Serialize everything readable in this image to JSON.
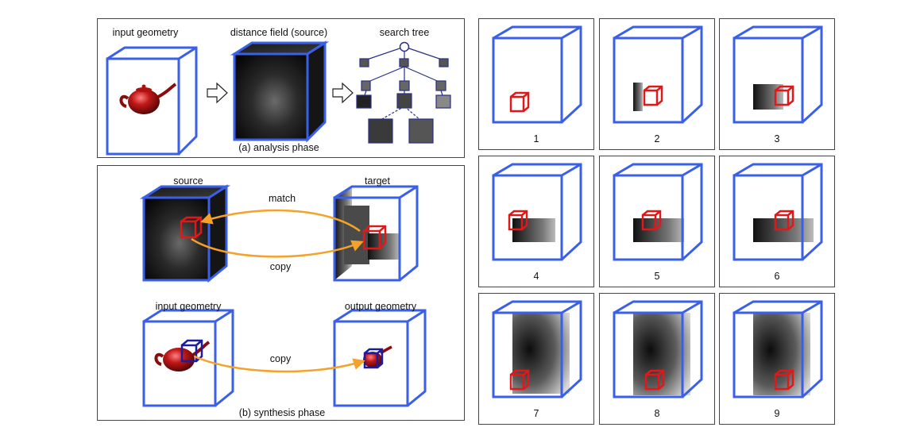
{
  "analysis": {
    "input_geometry": "input geometry",
    "distance_field": "distance field (source)",
    "search_tree": "search tree",
    "caption": "(a) analysis phase"
  },
  "synthesis": {
    "source": "source",
    "target": "target",
    "match": "match",
    "copy_top": "copy",
    "input_geometry": "input geometry",
    "output_geometry": "output geometry",
    "copy_bottom": "copy",
    "caption": "(b) synthesis phase"
  },
  "steps": [
    "1",
    "2",
    "3",
    "4",
    "5",
    "6",
    "7",
    "8",
    "9"
  ],
  "colors": {
    "cube_edge": "#3a5fe8",
    "patch": "#e01818",
    "arrow": "#f5a22a",
    "tree": "#2a2f8a",
    "teapot": "#a01010"
  }
}
